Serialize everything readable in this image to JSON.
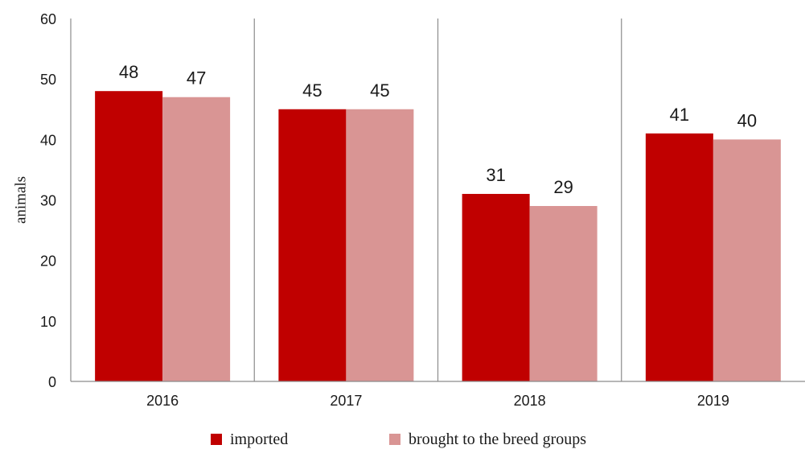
{
  "chart_data": {
    "type": "bar",
    "title": "",
    "xlabel": "",
    "ylabel": "animals",
    "ylim": [
      0,
      60
    ],
    "yticks": [
      0,
      10,
      20,
      30,
      40,
      50,
      60
    ],
    "categories": [
      "2016",
      "2017",
      "2018",
      "2019"
    ],
    "series": [
      {
        "name": "imported",
        "values": [
          48,
          45,
          31,
          41
        ],
        "color": "#c00000"
      },
      {
        "name": "brought to the breed groups",
        "values": [
          47,
          45,
          29,
          40
        ],
        "color": "#d99594"
      }
    ],
    "data_labels": true,
    "grid": false,
    "category_separators": true,
    "legend_position": "bottom"
  }
}
